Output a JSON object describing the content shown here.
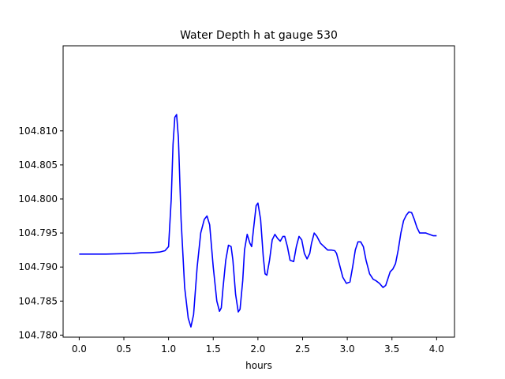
{
  "chart_data": {
    "type": "line",
    "title": "Water Depth h at gauge 530",
    "xlabel": "hours",
    "ylabel": "",
    "xlim": [
      -0.18,
      4.2
    ],
    "ylim": [
      104.7797,
      104.8225
    ],
    "xticks": [
      0.0,
      0.5,
      1.0,
      1.5,
      2.0,
      2.5,
      3.0,
      3.5,
      4.0
    ],
    "xtick_labels": [
      "0.0",
      "0.5",
      "1.0",
      "1.5",
      "2.0",
      "2.5",
      "3.0",
      "3.5",
      "4.0"
    ],
    "yticks": [
      104.78,
      104.785,
      104.79,
      104.795,
      104.8,
      104.805,
      104.81
    ],
    "ytick_labels": [
      "104.780",
      "104.785",
      "104.790",
      "104.795",
      "104.800",
      "104.805",
      "104.810"
    ],
    "grid": false,
    "series": [
      {
        "color": "#0000ff",
        "x": [
          0.0,
          0.3,
          0.6,
          0.7,
          0.8,
          0.9,
          0.96,
          1.0,
          1.03,
          1.05,
          1.07,
          1.09,
          1.11,
          1.14,
          1.18,
          1.22,
          1.25,
          1.28,
          1.32,
          1.36,
          1.4,
          1.43,
          1.46,
          1.5,
          1.54,
          1.57,
          1.59,
          1.61,
          1.64,
          1.67,
          1.7,
          1.72,
          1.75,
          1.78,
          1.8,
          1.83,
          1.85,
          1.88,
          1.91,
          1.93,
          1.95,
          1.98,
          2.0,
          2.03,
          2.06,
          2.08,
          2.1,
          2.13,
          2.16,
          2.19,
          2.22,
          2.25,
          2.28,
          2.3,
          2.33,
          2.36,
          2.4,
          2.43,
          2.46,
          2.49,
          2.52,
          2.55,
          2.58,
          2.6,
          2.63,
          2.66,
          2.7,
          2.74,
          2.78,
          2.82,
          2.86,
          2.88,
          2.91,
          2.95,
          2.99,
          3.03,
          3.06,
          3.09,
          3.12,
          3.15,
          3.18,
          3.21,
          3.25,
          3.29,
          3.32,
          3.36,
          3.4,
          3.43,
          3.46,
          3.48,
          3.51,
          3.54,
          3.57,
          3.6,
          3.63,
          3.66,
          3.69,
          3.72,
          3.75,
          3.78,
          3.81,
          3.84,
          3.88,
          3.92,
          3.96,
          4.0
        ],
        "y": [
          104.7919,
          104.7919,
          104.792,
          104.7921,
          104.7921,
          104.7922,
          104.7924,
          104.793,
          104.8,
          104.808,
          104.812,
          104.8124,
          104.809,
          104.797,
          104.787,
          104.7825,
          104.7812,
          104.783,
          104.79,
          104.795,
          104.797,
          104.7975,
          104.7962,
          104.79,
          104.785,
          104.7835,
          104.784,
          104.787,
          104.791,
          104.7932,
          104.793,
          104.791,
          104.786,
          104.7834,
          104.7838,
          104.788,
          104.7925,
          104.7948,
          104.7935,
          104.793,
          104.7955,
          104.799,
          104.7994,
          104.797,
          104.7915,
          104.789,
          104.7888,
          104.791,
          104.794,
          104.7948,
          104.7942,
          104.7938,
          104.7945,
          104.7945,
          104.793,
          104.791,
          104.7908,
          104.793,
          104.7945,
          104.794,
          104.792,
          104.7912,
          104.792,
          104.7935,
          104.795,
          104.7945,
          104.7935,
          104.793,
          104.7925,
          104.7925,
          104.7924,
          104.792,
          104.7905,
          104.7885,
          104.7876,
          104.7878,
          104.79,
          104.7925,
          104.7937,
          104.7937,
          104.793,
          104.791,
          104.789,
          104.7882,
          104.788,
          104.7876,
          104.787,
          104.7873,
          104.7885,
          104.7893,
          104.7897,
          104.7905,
          104.7925,
          104.795,
          104.7968,
          104.7976,
          104.7981,
          104.798,
          104.797,
          104.7958,
          104.795,
          104.795,
          104.795,
          104.7948,
          104.7946,
          104.7946
        ]
      }
    ]
  }
}
